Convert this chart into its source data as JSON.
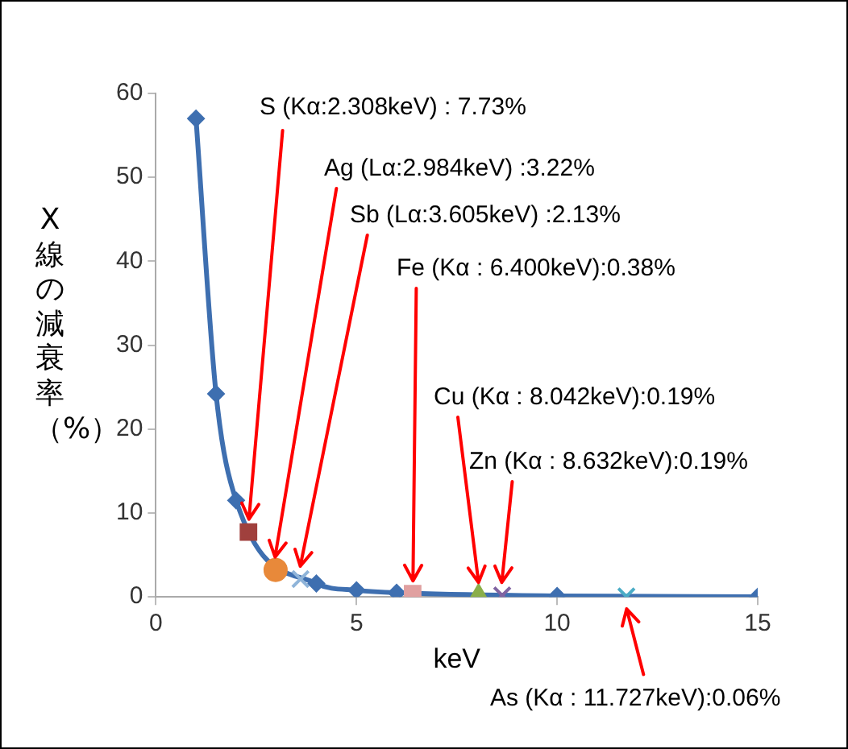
{
  "chart_data": {
    "type": "line",
    "xlabel": "keV",
    "ylabel": "X線の減衰率（%）",
    "series": [
      {
        "color": "#3e6fb0",
        "x": [
          1,
          1.5,
          2,
          4,
          5,
          6,
          10,
          15
        ],
        "values": [
          57,
          24.2,
          11.5,
          1.6,
          0.8,
          0.5,
          0.12,
          0.03
        ],
        "marker": "diamond"
      },
      {
        "type": "scatter",
        "color": "#a0403d",
        "x": [
          2.308
        ],
        "values": [
          7.73
        ],
        "marker": "square"
      },
      {
        "type": "scatter",
        "color": "#e8893a",
        "x": [
          2.984
        ],
        "values": [
          3.22
        ],
        "marker": "circle"
      },
      {
        "type": "scatter",
        "color": "#8fb4d9",
        "x": [
          3.605
        ],
        "values": [
          2.13
        ],
        "marker": "cross"
      },
      {
        "type": "scatter",
        "color": "#e0a0a0",
        "x": [
          6.4
        ],
        "values": [
          0.38
        ],
        "marker": "square"
      },
      {
        "type": "scatter",
        "color": "#8aae4a",
        "x": [
          8.042
        ],
        "values": [
          0.19
        ],
        "marker": "triangle"
      },
      {
        "type": "scatter",
        "color": "#8064a2",
        "x": [
          8.632
        ],
        "values": [
          0.19
        ],
        "marker": "cross"
      },
      {
        "type": "scatter",
        "color": "#4bacc6",
        "x": [
          11.727
        ],
        "values": [
          0.06
        ],
        "marker": "cross"
      }
    ],
    "annotations": [
      {
        "text": "S (Kα:2.308keV) : 7.73%",
        "x": 2.308,
        "y": 7.73
      },
      {
        "text": "Ag (Lα:2.984keV) :3.22%",
        "x": 2.984,
        "y": 3.22
      },
      {
        "text": "Sb (Lα:3.605keV) :2.13%",
        "x": 3.605,
        "y": 2.13
      },
      {
        "text": "Fe (Kα : 6.400keV):0.38%",
        "x": 6.4,
        "y": 0.38
      },
      {
        "text": "Cu (Kα : 8.042keV):0.19%",
        "x": 8.042,
        "y": 0.19
      },
      {
        "text": "Zn (Kα : 8.632keV):0.19%",
        "x": 8.632,
        "y": 0.19
      },
      {
        "text": "As (Kα : 11.727keV):0.06%",
        "x": 11.727,
        "y": 0.06
      }
    ],
    "xlim": [
      0,
      15
    ],
    "xticks": [
      0,
      5,
      10,
      15
    ],
    "ylim": [
      0,
      60
    ],
    "yticks": [
      0,
      10,
      20,
      30,
      40,
      50,
      60
    ],
    "grid": false,
    "legend": false,
    "line_style": "solid"
  }
}
